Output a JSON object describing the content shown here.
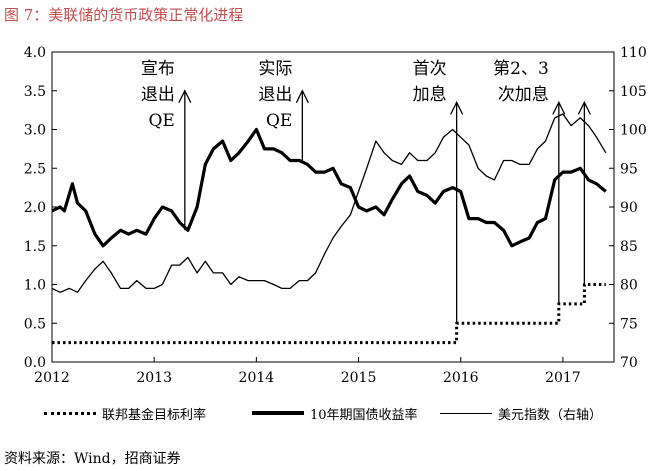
{
  "figure": {
    "title": "图 7：美联储的货币政策正常化进程",
    "source": "资料来源：Wind，招商证券"
  },
  "chart_data": {
    "type": "line",
    "title": "",
    "xlabel": "",
    "ylabel": "",
    "xlim": [
      2012,
      2017.5
    ],
    "x_ticks": [
      "2012",
      "2013",
      "2014",
      "2015",
      "2016",
      "2017"
    ],
    "y_left": {
      "lim": [
        0,
        4
      ],
      "ticks": [
        "0.0",
        "0.5",
        "1.0",
        "1.5",
        "2.0",
        "2.5",
        "3.0",
        "3.5",
        "4.0"
      ]
    },
    "y_right": {
      "lim": [
        70,
        110
      ],
      "ticks": [
        "70",
        "75",
        "80",
        "85",
        "90",
        "95",
        "100",
        "105",
        "110"
      ]
    },
    "grid": false,
    "legend_position": "bottom",
    "series": [
      {
        "name": "联邦基金目标利率",
        "axis": "left",
        "style": "dotted",
        "color": "#000000",
        "points": [
          [
            2012,
            0.25
          ],
          [
            2015.96,
            0.25
          ],
          [
            2015.96,
            0.5
          ],
          [
            2016.96,
            0.5
          ],
          [
            2016.96,
            0.75
          ],
          [
            2017.21,
            0.75
          ],
          [
            2017.21,
            1.0
          ],
          [
            2017.42,
            1.0
          ]
        ]
      },
      {
        "name": "10年期国债收益率",
        "axis": "left",
        "style": "bold",
        "color": "#000000",
        "points": [
          [
            2012,
            1.95
          ],
          [
            2012.08,
            2.0
          ],
          [
            2012.12,
            1.95
          ],
          [
            2012.2,
            2.3
          ],
          [
            2012.25,
            2.05
          ],
          [
            2012.33,
            1.95
          ],
          [
            2012.42,
            1.65
          ],
          [
            2012.5,
            1.5
          ],
          [
            2012.58,
            1.6
          ],
          [
            2012.67,
            1.7
          ],
          [
            2012.75,
            1.65
          ],
          [
            2012.83,
            1.7
          ],
          [
            2012.92,
            1.65
          ],
          [
            2013,
            1.85
          ],
          [
            2013.08,
            2.0
          ],
          [
            2013.17,
            1.95
          ],
          [
            2013.25,
            1.8
          ],
          [
            2013.33,
            1.7
          ],
          [
            2013.42,
            2.0
          ],
          [
            2013.5,
            2.55
          ],
          [
            2013.58,
            2.75
          ],
          [
            2013.67,
            2.85
          ],
          [
            2013.75,
            2.6
          ],
          [
            2013.83,
            2.7
          ],
          [
            2013.92,
            2.85
          ],
          [
            2014,
            3.0
          ],
          [
            2014.08,
            2.75
          ],
          [
            2014.17,
            2.75
          ],
          [
            2014.25,
            2.7
          ],
          [
            2014.33,
            2.6
          ],
          [
            2014.42,
            2.6
          ],
          [
            2014.5,
            2.55
          ],
          [
            2014.58,
            2.45
          ],
          [
            2014.67,
            2.45
          ],
          [
            2014.75,
            2.5
          ],
          [
            2014.83,
            2.3
          ],
          [
            2014.92,
            2.25
          ],
          [
            2015,
            2.0
          ],
          [
            2015.08,
            1.95
          ],
          [
            2015.17,
            2.0
          ],
          [
            2015.25,
            1.9
          ],
          [
            2015.33,
            2.1
          ],
          [
            2015.42,
            2.3
          ],
          [
            2015.5,
            2.4
          ],
          [
            2015.58,
            2.2
          ],
          [
            2015.67,
            2.15
          ],
          [
            2015.75,
            2.05
          ],
          [
            2015.83,
            2.2
          ],
          [
            2015.92,
            2.25
          ],
          [
            2016,
            2.2
          ],
          [
            2016.08,
            1.85
          ],
          [
            2016.17,
            1.85
          ],
          [
            2016.25,
            1.8
          ],
          [
            2016.33,
            1.8
          ],
          [
            2016.42,
            1.7
          ],
          [
            2016.5,
            1.5
          ],
          [
            2016.58,
            1.55
          ],
          [
            2016.67,
            1.6
          ],
          [
            2016.75,
            1.8
          ],
          [
            2016.83,
            1.85
          ],
          [
            2016.92,
            2.35
          ],
          [
            2017,
            2.45
          ],
          [
            2017.08,
            2.45
          ],
          [
            2017.17,
            2.5
          ],
          [
            2017.25,
            2.35
          ],
          [
            2017.33,
            2.3
          ],
          [
            2017.42,
            2.2
          ]
        ]
      },
      {
        "name": "美元指数（右轴）",
        "axis": "right",
        "style": "thin",
        "color": "#000000",
        "points": [
          [
            2012,
            79.5
          ],
          [
            2012.08,
            79
          ],
          [
            2012.17,
            79.5
          ],
          [
            2012.25,
            79
          ],
          [
            2012.33,
            80.5
          ],
          [
            2012.42,
            82
          ],
          [
            2012.5,
            83
          ],
          [
            2012.58,
            81.5
          ],
          [
            2012.67,
            79.5
          ],
          [
            2012.75,
            79.5
          ],
          [
            2012.83,
            80.5
          ],
          [
            2012.92,
            79.5
          ],
          [
            2013,
            79.5
          ],
          [
            2013.08,
            80
          ],
          [
            2013.17,
            82.5
          ],
          [
            2013.25,
            82.5
          ],
          [
            2013.33,
            83.5
          ],
          [
            2013.42,
            81.5
          ],
          [
            2013.5,
            83
          ],
          [
            2013.58,
            81.5
          ],
          [
            2013.67,
            81.5
          ],
          [
            2013.75,
            80
          ],
          [
            2013.83,
            81
          ],
          [
            2013.92,
            80.5
          ],
          [
            2014,
            80.5
          ],
          [
            2014.08,
            80.5
          ],
          [
            2014.17,
            80
          ],
          [
            2014.25,
            79.5
          ],
          [
            2014.33,
            79.5
          ],
          [
            2014.42,
            80.5
          ],
          [
            2014.5,
            80.5
          ],
          [
            2014.58,
            81.5
          ],
          [
            2014.67,
            84
          ],
          [
            2014.75,
            86
          ],
          [
            2014.83,
            87.5
          ],
          [
            2014.92,
            89
          ],
          [
            2015,
            92
          ],
          [
            2015.08,
            95
          ],
          [
            2015.17,
            98.5
          ],
          [
            2015.25,
            97
          ],
          [
            2015.33,
            96
          ],
          [
            2015.42,
            95.5
          ],
          [
            2015.5,
            97
          ],
          [
            2015.58,
            96
          ],
          [
            2015.67,
            96
          ],
          [
            2015.75,
            97
          ],
          [
            2015.83,
            99
          ],
          [
            2015.92,
            100
          ],
          [
            2016,
            99
          ],
          [
            2016.08,
            98
          ],
          [
            2016.17,
            95
          ],
          [
            2016.25,
            94
          ],
          [
            2016.33,
            93.5
          ],
          [
            2016.42,
            96
          ],
          [
            2016.5,
            96
          ],
          [
            2016.58,
            95.5
          ],
          [
            2016.67,
            95.5
          ],
          [
            2016.75,
            97.5
          ],
          [
            2016.83,
            98.5
          ],
          [
            2016.92,
            101.5
          ],
          [
            2017,
            102
          ],
          [
            2017.08,
            100.5
          ],
          [
            2017.17,
            101.5
          ],
          [
            2017.25,
            100.5
          ],
          [
            2017.33,
            99
          ],
          [
            2017.42,
            97
          ]
        ]
      }
    ],
    "annotations": [
      {
        "lines": [
          "宣布",
          "退出",
          "QE"
        ],
        "x": 2013.3,
        "y_right": 105
      },
      {
        "lines": [
          "实际",
          "退出",
          "QE"
        ],
        "x": 2014.45,
        "y_right": 105
      },
      {
        "lines": [
          "首次",
          "加息"
        ],
        "x": 2015.96,
        "y_right": 103.5
      },
      {
        "lines": [
          "第2、3",
          "次加息"
        ],
        "x": 2016.96,
        "y_right": 103.5
      },
      {
        "lines": [],
        "x": 2017.21,
        "y_right": 103.5
      }
    ]
  }
}
